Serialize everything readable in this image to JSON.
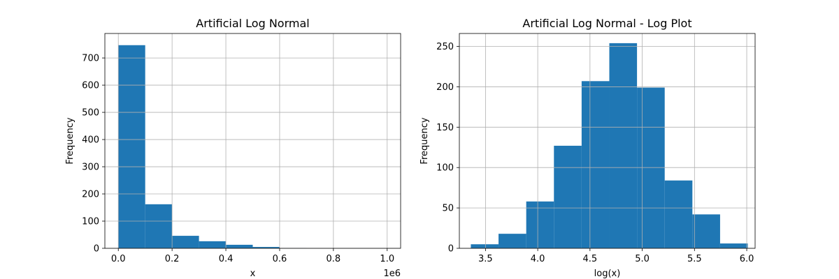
{
  "chart_data": [
    {
      "type": "bar",
      "title": "Artificial Log Normal",
      "xlabel": "x",
      "ylabel": "Frequency",
      "x_offset_text": "1e6",
      "xlim": [
        -0.05,
        1.05
      ],
      "ylim": [
        0,
        790
      ],
      "xticks": [
        0.0,
        0.2,
        0.4,
        0.6,
        0.8,
        1.0
      ],
      "xtick_labels": [
        "0.0",
        "0.2",
        "0.4",
        "0.6",
        "0.8",
        "1.0"
      ],
      "yticks": [
        0,
        100,
        200,
        300,
        400,
        500,
        600,
        700
      ],
      "ytick_labels": [
        "0",
        "100",
        "200",
        "300",
        "400",
        "500",
        "600",
        "700"
      ],
      "grid": true,
      "color": "#1f77b4",
      "bin_edges": [
        0.0,
        0.1,
        0.2,
        0.3,
        0.4,
        0.5,
        0.6,
        0.7,
        0.8,
        0.9,
        1.0
      ],
      "values": [
        747,
        162,
        46,
        26,
        13,
        5,
        1,
        0,
        0,
        0
      ]
    },
    {
      "type": "bar",
      "title": "Artificial Log Normal - Log Plot",
      "xlabel": "log(x)",
      "ylabel": "Frequency",
      "xlim": [
        3.25,
        6.08
      ],
      "ylim": [
        0,
        266
      ],
      "xticks": [
        3.5,
        4.0,
        4.5,
        5.0,
        5.5,
        6.0
      ],
      "xtick_labels": [
        "3.5",
        "4.0",
        "4.5",
        "5.0",
        "5.5",
        "6.0"
      ],
      "yticks": [
        0,
        50,
        100,
        150,
        200,
        250
      ],
      "ytick_labels": [
        "0",
        "50",
        "100",
        "150",
        "200",
        "250"
      ],
      "grid": true,
      "color": "#1f77b4",
      "bin_edges": [
        3.36,
        3.625,
        3.89,
        4.155,
        4.42,
        4.685,
        4.95,
        5.215,
        5.48,
        5.745,
        6.01
      ],
      "values": [
        5,
        18,
        58,
        127,
        207,
        254,
        199,
        84,
        42,
        6
      ]
    }
  ]
}
